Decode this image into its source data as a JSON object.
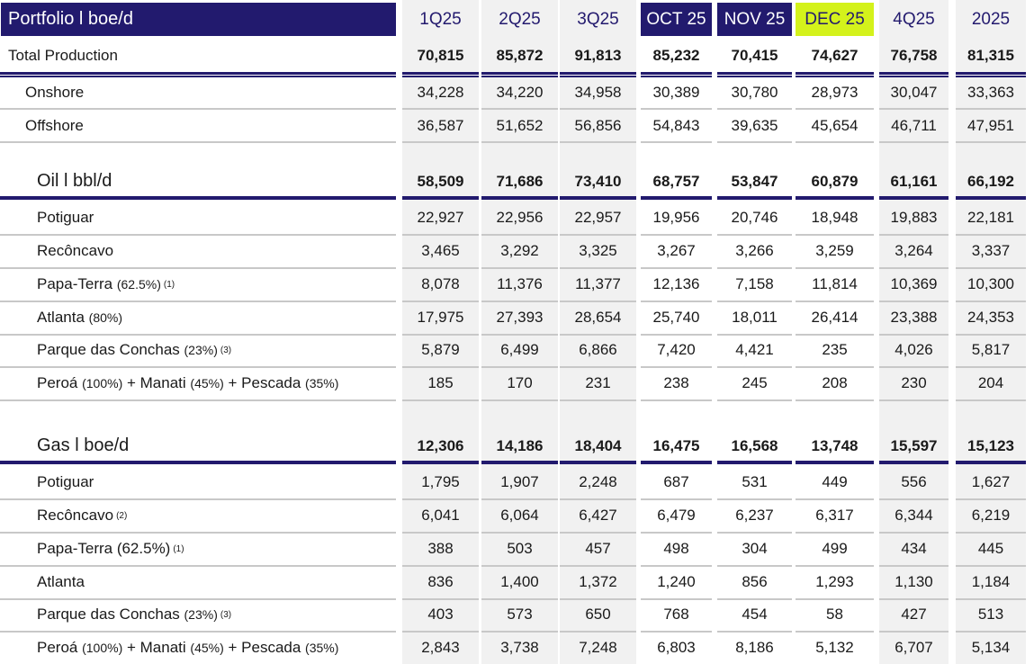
{
  "title": "Portfolio l boe/d",
  "columns": [
    "1Q25",
    "2Q25",
    "3Q25",
    "OCT 25",
    "NOV 25",
    "DEC 25",
    "4Q25",
    "2025"
  ],
  "total": {
    "label": "Total Production",
    "values": [
      "70,815",
      "85,872",
      "91,813",
      "85,232",
      "70,415",
      "74,627",
      "76,758",
      "81,315"
    ]
  },
  "split": [
    {
      "label": "Onshore",
      "values": [
        "34,228",
        "34,220",
        "34,958",
        "30,389",
        "30,780",
        "28,973",
        "30,047",
        "33,363"
      ]
    },
    {
      "label": "Offshore",
      "values": [
        "36,587",
        "51,652",
        "56,856",
        "54,843",
        "39,635",
        "45,654",
        "46,711",
        "47,951"
      ]
    }
  ],
  "oil": {
    "label": "Oil l bbl/d",
    "values": [
      "58,509",
      "71,686",
      "73,410",
      "68,757",
      "53,847",
      "60,879",
      "61,161",
      "66,192"
    ],
    "rows": [
      {
        "label": "Potiguar",
        "sub": "",
        "sup": "",
        "values": [
          "22,927",
          "22,956",
          "22,957",
          "19,956",
          "20,746",
          "18,948",
          "19,883",
          "22,181"
        ]
      },
      {
        "label": "Recôncavo",
        "sub": "",
        "sup": "",
        "values": [
          "3,465",
          "3,292",
          "3,325",
          "3,267",
          "3,266",
          "3,259",
          "3,264",
          "3,337"
        ]
      },
      {
        "label": "Papa-Terra",
        "sub": "(62.5%)",
        "sup": "(1)",
        "values": [
          "8,078",
          "11,376",
          "11,377",
          "12,136",
          "7,158",
          "11,814",
          "10,369",
          "10,300"
        ]
      },
      {
        "label": "Atlanta",
        "sub": "(80%)",
        "sup": "",
        "values": [
          "17,975",
          "27,393",
          "28,654",
          "25,740",
          "18,011",
          "26,414",
          "23,388",
          "24,353"
        ]
      },
      {
        "label": "Parque das Conchas",
        "sub": "(23%)",
        "sup": "(3)",
        "values": [
          "5,879",
          "6,499",
          "6,866",
          "7,420",
          "4,421",
          "235",
          "4,026",
          "5,817"
        ]
      },
      {
        "label": "Peroá",
        "sub": "(100%)",
        "mid1": "+ Manati",
        "sub2": "(45%)",
        "mid2": "+ Pescada",
        "sub3": "(35%)",
        "sup": "",
        "values": [
          "185",
          "170",
          "231",
          "238",
          "245",
          "208",
          "230",
          "204"
        ]
      }
    ]
  },
  "gas": {
    "label": "Gas l boe/d",
    "values": [
      "12,306",
      "14,186",
      "18,404",
      "16,475",
      "16,568",
      "13,748",
      "15,597",
      "15,123"
    ],
    "rows": [
      {
        "label": "Potiguar",
        "sub": "",
        "sup": "",
        "values": [
          "1,795",
          "1,907",
          "2,248",
          "687",
          "531",
          "449",
          "556",
          "1,627"
        ]
      },
      {
        "label": "Recôncavo",
        "sub": "",
        "sup": "(2)",
        "values": [
          "6,041",
          "6,064",
          "6,427",
          "6,479",
          "6,237",
          "6,317",
          "6,344",
          "6,219"
        ]
      },
      {
        "label": "Papa-Terra (62.5%)",
        "sub": "",
        "sup": "(1)",
        "values": [
          "388",
          "503",
          "457",
          "498",
          "304",
          "499",
          "434",
          "445"
        ]
      },
      {
        "label": "Atlanta",
        "sub": "",
        "sup": "",
        "values": [
          "836",
          "1,400",
          "1,372",
          "1,240",
          "856",
          "1,293",
          "1,130",
          "1,184"
        ]
      },
      {
        "label": "Parque das Conchas",
        "sub": "(23%)",
        "sup": "(3)",
        "values": [
          "403",
          "573",
          "650",
          "768",
          "454",
          "58",
          "427",
          "513"
        ]
      },
      {
        "label": "Peroá",
        "sub": "(100%)",
        "mid1": "+ Manati",
        "sub2": "(45%)",
        "mid2": "+ Pescada",
        "sub3": "(35%)",
        "sup": "",
        "values": [
          "2,843",
          "3,738",
          "7,248",
          "6,803",
          "8,186",
          "5,132",
          "6,707",
          "5,134"
        ]
      }
    ]
  }
}
